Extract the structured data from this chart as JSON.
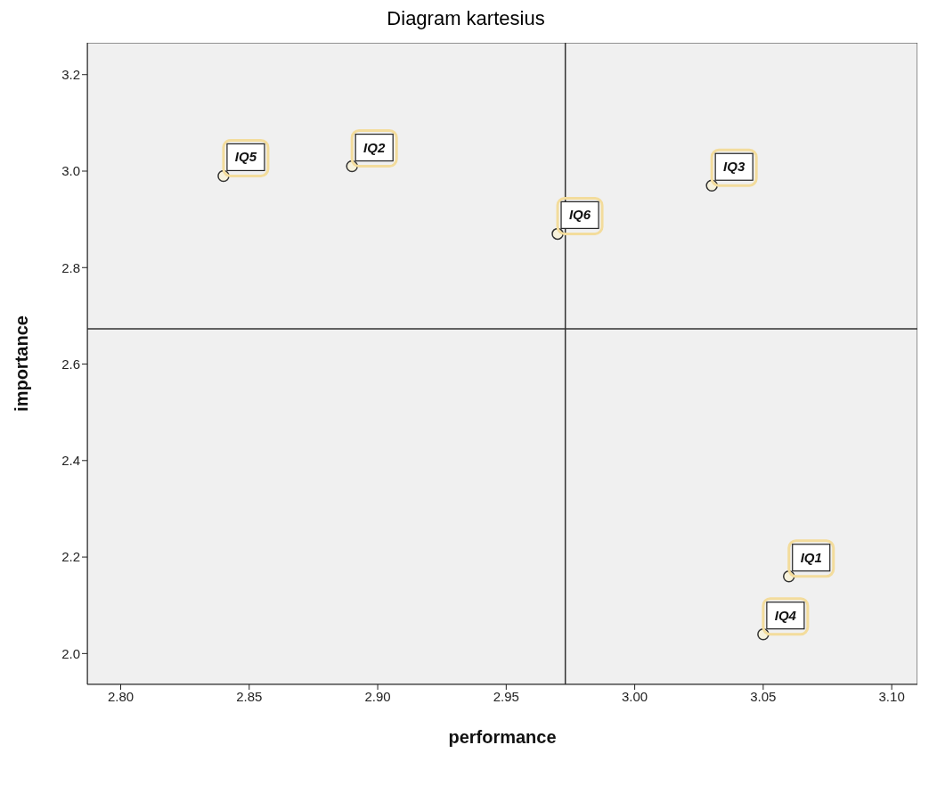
{
  "chart_data": {
    "type": "scatter",
    "title": "Diagram kartesius",
    "xlabel": "performance",
    "ylabel": "importance",
    "x": [
      3.06,
      2.89,
      3.03,
      3.05,
      2.84,
      2.97
    ],
    "series": [
      {
        "color": "#333333",
        "values": [
          2.16,
          3.01,
          2.97,
          2.04,
          2.99,
          2.87
        ]
      }
    ],
    "xlim": [
      2.787,
      3.11
    ],
    "ylim": [
      1.936,
      3.266
    ],
    "xticks": [
      {
        "value": 2.8,
        "label": "2.80"
      },
      {
        "value": 2.85,
        "label": "2.85"
      },
      {
        "value": 2.9,
        "label": "2.90"
      },
      {
        "value": 2.95,
        "label": "2.95"
      },
      {
        "value": 3.0,
        "label": "3.00"
      },
      {
        "value": 3.05,
        "label": "3.05"
      },
      {
        "value": 3.1,
        "label": "3.10"
      }
    ],
    "yticks": [
      {
        "value": 2.0,
        "label": "2.0"
      },
      {
        "value": 2.2,
        "label": "2.2"
      },
      {
        "value": 2.4,
        "label": "2.4"
      },
      {
        "value": 2.6,
        "label": "2.6"
      },
      {
        "value": 2.8,
        "label": "2.8"
      },
      {
        "value": 3.0,
        "label": "3.0"
      },
      {
        "value": 3.2,
        "label": "3.2"
      }
    ],
    "ref_lines": [
      {
        "axis": "x",
        "value": 2.973,
        "color": "#333333"
      },
      {
        "axis": "y",
        "value": 2.673,
        "color": "#333333"
      }
    ],
    "annotations": [
      {
        "text": "IQ1",
        "x": 3.06,
        "y": 2.16
      },
      {
        "text": "IQ2",
        "x": 2.89,
        "y": 3.01
      },
      {
        "text": "IQ3",
        "x": 3.03,
        "y": 2.97
      },
      {
        "text": "IQ4",
        "x": 3.05,
        "y": 2.04
      },
      {
        "text": "IQ5",
        "x": 2.84,
        "y": 2.99
      },
      {
        "text": "IQ6",
        "x": 2.97,
        "y": 2.87
      }
    ],
    "grid": false,
    "marker": "circle"
  }
}
